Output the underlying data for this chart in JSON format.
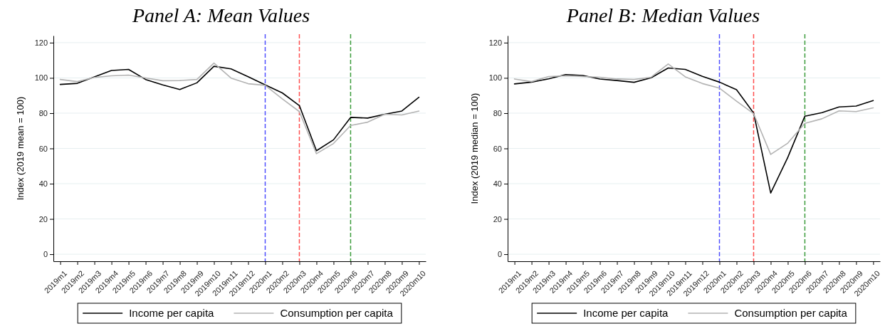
{
  "chart_data": [
    {
      "type": "line",
      "title": "Panel A: Mean Values",
      "ylabel": "Index (2019 mean = 100)",
      "categories": [
        "2019m1",
        "2019m2",
        "2019m3",
        "2019m4",
        "2019m5",
        "2019m6",
        "2019m7",
        "2019m8",
        "2019m9",
        "2019m10",
        "2019m11",
        "2019m12",
        "2020m1",
        "2020m2",
        "2020m3",
        "2020m4",
        "2020m5",
        "2020m6",
        "2020m7",
        "2020m8",
        "2020m9",
        "2020m10"
      ],
      "series": [
        {
          "name": "Income per capita",
          "color": "#000000",
          "values": [
            96.3,
            96.9,
            100.6,
            104.2,
            104.8,
            99.1,
            96.0,
            93.4,
            97.2,
            106.6,
            105.1,
            100.7,
            96.0,
            91.5,
            84.3,
            58.7,
            64.9,
            77.6,
            77.2,
            79.4,
            81.2,
            89.0
          ]
        },
        {
          "name": "Consumption per capita",
          "color": "#b3b3b3",
          "values": [
            99.1,
            97.9,
            100.3,
            101.2,
            101.6,
            100.0,
            98.4,
            98.5,
            99.1,
            108.4,
            99.9,
            96.7,
            95.8,
            88.1,
            80.9,
            57.0,
            62.8,
            73.0,
            74.9,
            79.4,
            79.0,
            81.2
          ]
        }
      ],
      "ylim": [
        -4,
        124
      ],
      "yticks": [
        0,
        20,
        40,
        60,
        80,
        100,
        120
      ],
      "grid": "y",
      "legend": "bottom",
      "ref_lines": [
        {
          "axis": "x",
          "value": "2020m1",
          "color": "#5050ff",
          "line_style": "dashed"
        },
        {
          "axis": "x",
          "value": "2020m3",
          "color": "#ff4f4f",
          "line_style": "dashed"
        },
        {
          "axis": "x",
          "value": "2020m6",
          "color": "#3c9c3c",
          "line_style": "dashed"
        }
      ]
    },
    {
      "type": "line",
      "title": "Panel B: Median Values",
      "ylabel": "Index (2019 median = 100)",
      "categories": [
        "2019m1",
        "2019m2",
        "2019m3",
        "2019m4",
        "2019m5",
        "2019m6",
        "2019m7",
        "2019m8",
        "2019m9",
        "2019m10",
        "2019m11",
        "2019m12",
        "2020m1",
        "2020m2",
        "2020m3",
        "2020m4",
        "2020m5",
        "2020m6",
        "2020m7",
        "2020m8",
        "2020m9",
        "2020m10"
      ],
      "series": [
        {
          "name": "Income per capita",
          "color": "#000000",
          "values": [
            96.6,
            97.6,
            99.5,
            101.9,
            101.4,
            99.4,
            98.5,
            97.5,
            100.1,
            105.6,
            104.8,
            100.9,
            97.6,
            93.3,
            80.1,
            34.7,
            54.9,
            78.3,
            80.3,
            83.5,
            84.0,
            87.2
          ]
        },
        {
          "name": "Consumption per capita",
          "color": "#b3b3b3",
          "values": [
            99.4,
            97.9,
            100.8,
            101.2,
            100.8,
            100.4,
            99.4,
            99.1,
            100.4,
            107.9,
            100.6,
            96.8,
            94.2,
            86.8,
            79.7,
            56.6,
            63.0,
            74.2,
            76.8,
            81.3,
            80.9,
            83.0
          ]
        }
      ],
      "ylim": [
        -4,
        124
      ],
      "yticks": [
        0,
        20,
        40,
        60,
        80,
        100,
        120
      ],
      "grid": "y",
      "legend": "bottom",
      "ref_lines": [
        {
          "axis": "x",
          "value": "2020m1",
          "color": "#5050ff",
          "line_style": "dashed"
        },
        {
          "axis": "x",
          "value": "2020m3",
          "color": "#ff4f4f",
          "line_style": "dashed"
        },
        {
          "axis": "x",
          "value": "2020m6",
          "color": "#3c9c3c",
          "line_style": "dashed"
        }
      ]
    }
  ]
}
